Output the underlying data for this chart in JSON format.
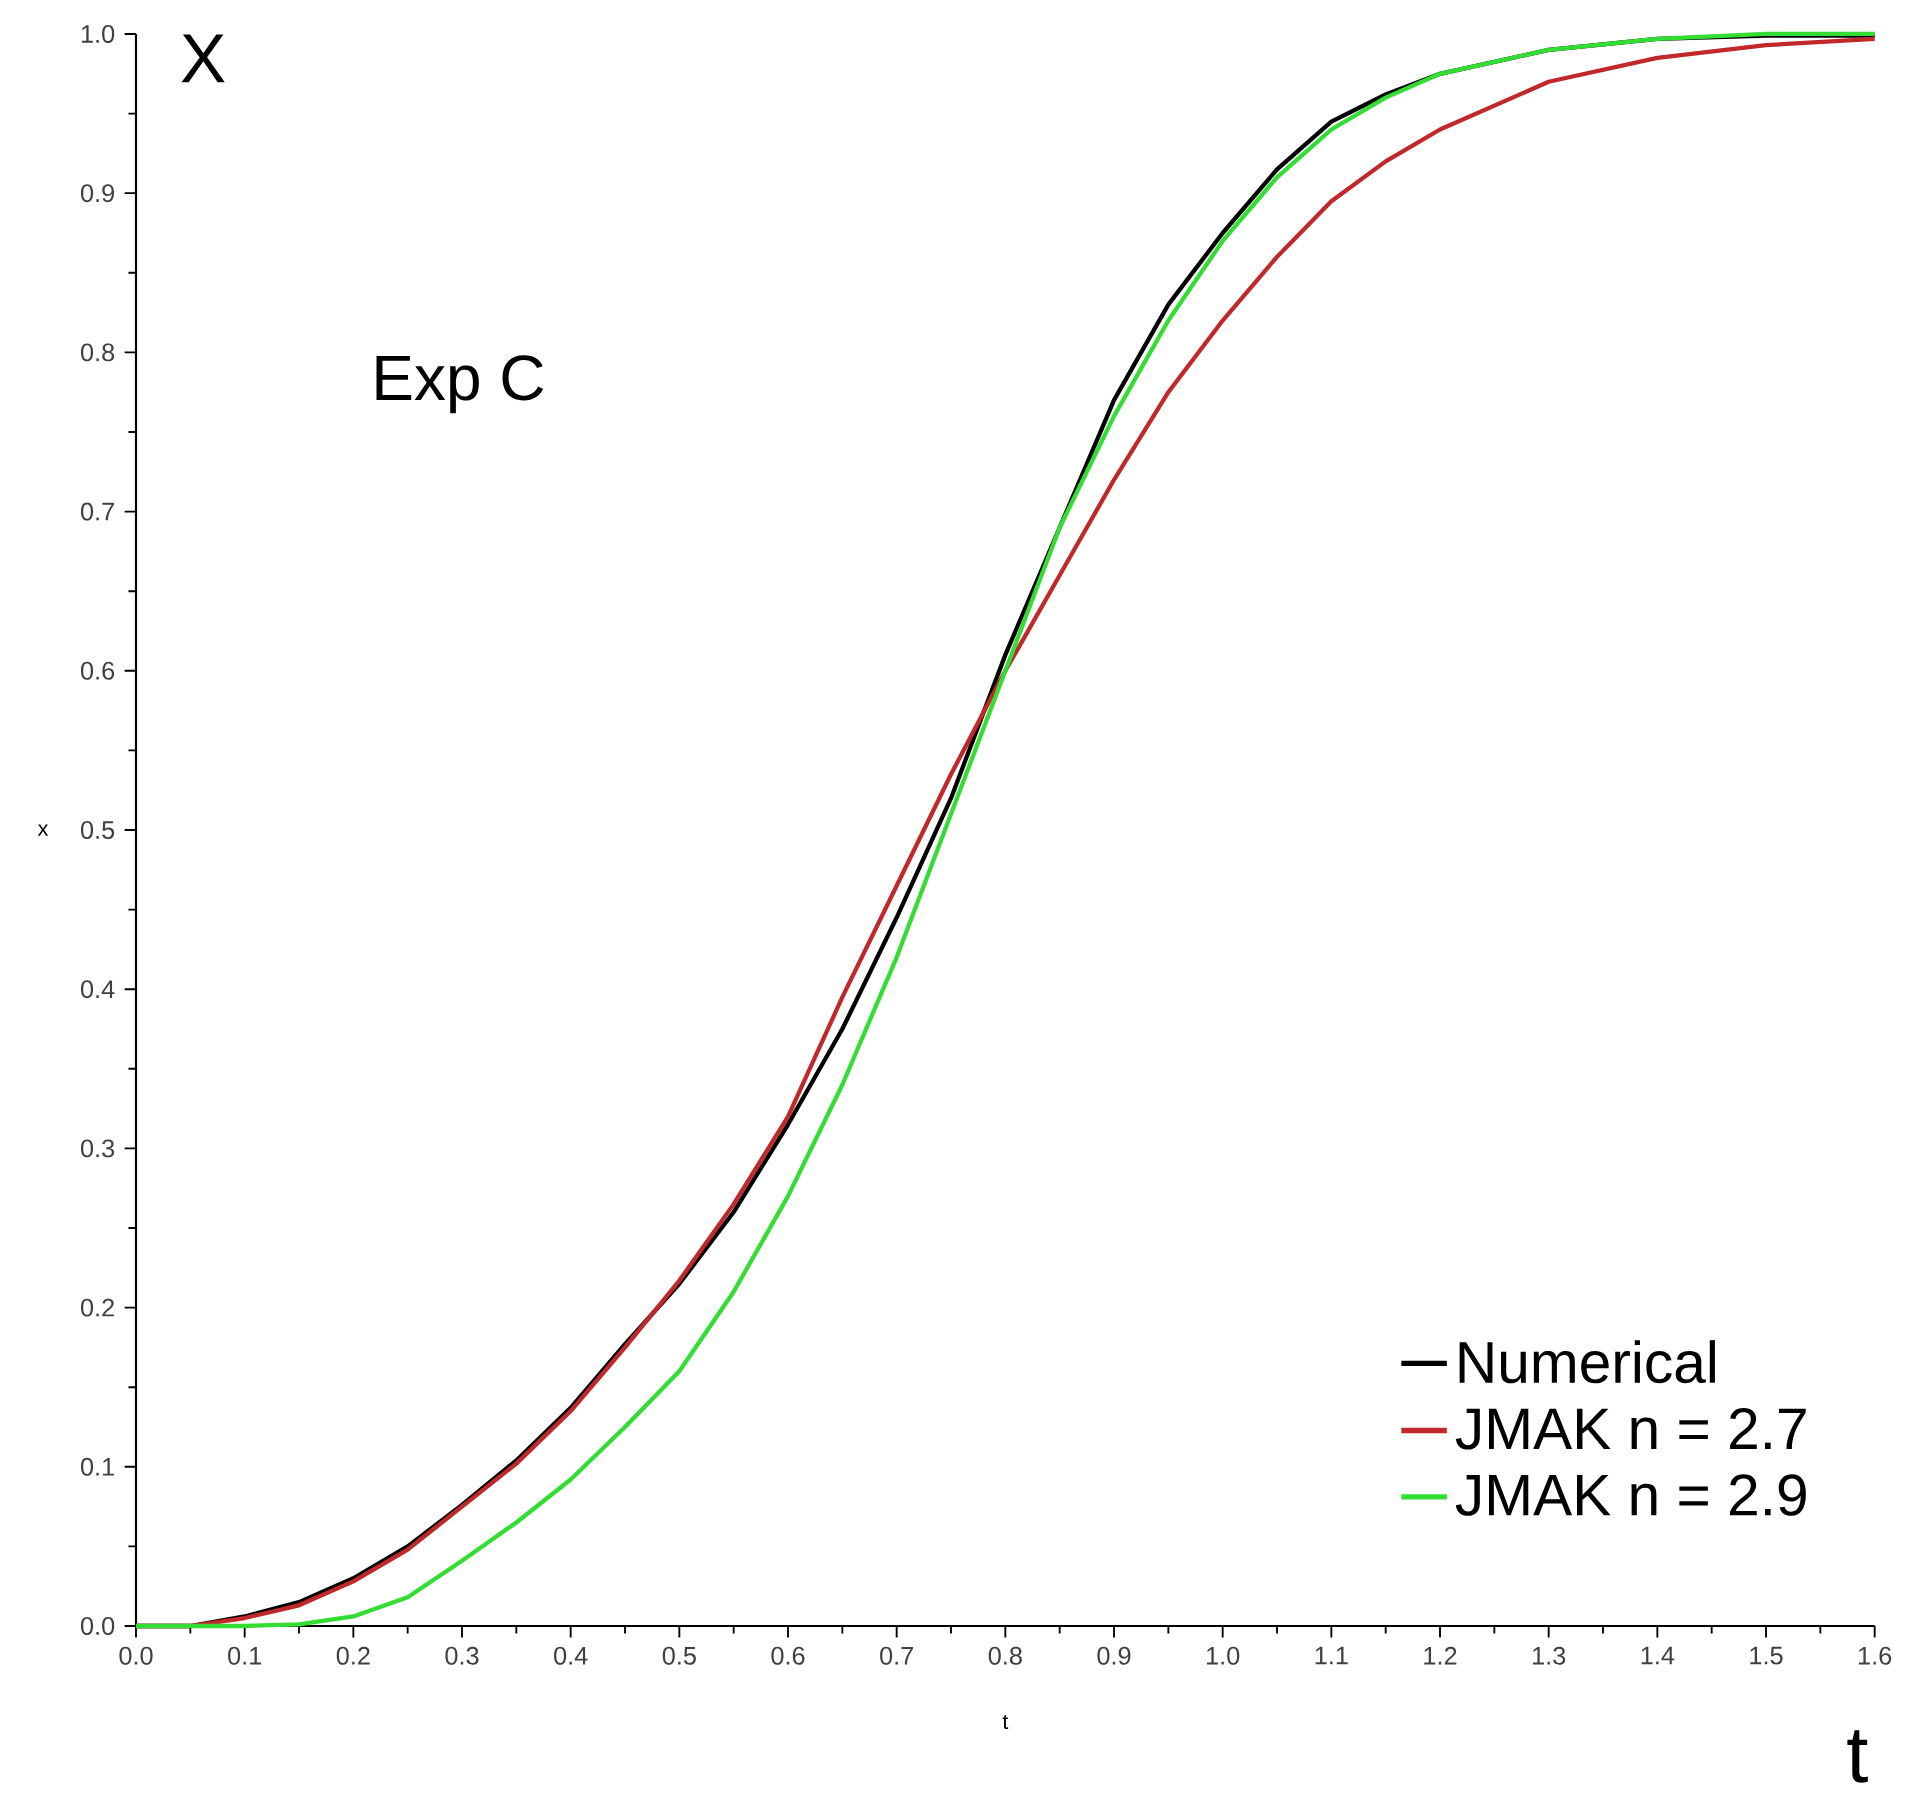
{
  "chart_data": {
    "type": "line",
    "xlabel": "t",
    "ylabel": "x",
    "annotations": [
      "X",
      "Exp C",
      "t"
    ],
    "x": [
      0,
      0.05,
      0.1,
      0.15,
      0.2,
      0.25,
      0.3,
      0.35,
      0.4,
      0.45,
      0.5,
      0.55,
      0.6,
      0.65,
      0.7,
      0.75,
      0.8,
      0.85,
      0.9,
      0.95,
      1.0,
      1.05,
      1.1,
      1.15,
      1.2,
      1.3,
      1.4,
      1.5,
      1.6
    ],
    "series": [
      {
        "name": "Numerical",
        "color": "#000000",
        "values": [
          0,
          0,
          0.006,
          0.015,
          0.03,
          0.05,
          0.076,
          0.104,
          0.137,
          0.177,
          0.215,
          0.26,
          0.315,
          0.375,
          0.445,
          0.52,
          0.61,
          0.69,
          0.77,
          0.83,
          0.875,
          0.915,
          0.945,
          0.962,
          0.975,
          0.99,
          0.997,
          0.999,
          0.999
        ]
      },
      {
        "name": "JMAK n = 2.7",
        "color": "#c0282a",
        "values": [
          0,
          0,
          0.005,
          0.013,
          0.028,
          0.048,
          0.075,
          0.102,
          0.135,
          0.175,
          0.217,
          0.265,
          0.32,
          0.395,
          0.465,
          0.535,
          0.6,
          0.66,
          0.72,
          0.775,
          0.82,
          0.86,
          0.895,
          0.92,
          0.94,
          0.97,
          0.985,
          0.993,
          0.997
        ]
      },
      {
        "name": "JMAK n = 2.9",
        "color": "#33dd33",
        "values": [
          0,
          0,
          0,
          0.001,
          0.006,
          0.018,
          0.041,
          0.065,
          0.092,
          0.125,
          0.16,
          0.21,
          0.27,
          0.34,
          0.42,
          0.51,
          0.6,
          0.69,
          0.76,
          0.82,
          0.87,
          0.91,
          0.94,
          0.96,
          0.975,
          0.99,
          0.997,
          1.0,
          1.0
        ]
      }
    ],
    "xlim": [
      0,
      1.6
    ],
    "ylim": [
      0,
      1.0
    ],
    "xticks": [
      {
        "value": 0,
        "label": "0.0"
      },
      0.1,
      0.2,
      0.3,
      0.4,
      0.5,
      0.6,
      0.7,
      0.8,
      0.9,
      {
        "value": 1.0,
        "label": "1.0"
      },
      1.1,
      1.2,
      1.3,
      1.4,
      1.5,
      1.6
    ],
    "yticks": [
      {
        "value": 0,
        "label": "0.0"
      },
      0.1,
      0.2,
      0.3,
      0.4,
      0.5,
      0.6,
      0.7,
      0.8,
      0.9,
      {
        "value": 1.0,
        "label": "1.0"
      }
    ],
    "grid": false,
    "legend": "bottom right",
    "line_style": "solid",
    "marker": "none"
  }
}
